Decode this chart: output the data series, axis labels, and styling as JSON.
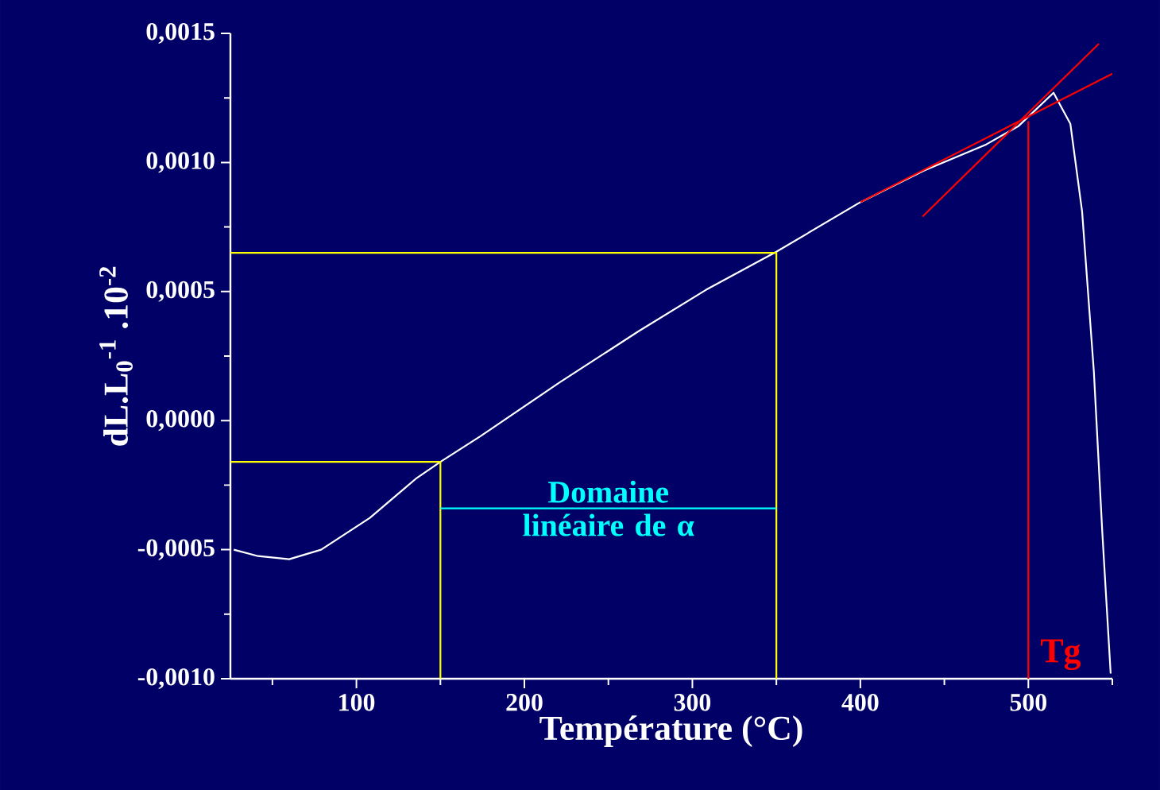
{
  "chart_data": {
    "type": "line",
    "xlabel": "Température (°C)",
    "ylabel": "dL.L$_{0}$$^{-1}$ .10$^{-2}$",
    "xlim": [
      25,
      550
    ],
    "ylim": [
      -0.001,
      0.0015
    ],
    "xticks": [
      100,
      200,
      300,
      400,
      500
    ],
    "yticks": [
      {
        "value": -0.001,
        "label": "-0,0010"
      },
      {
        "value": -0.0005,
        "label": "-0,0005"
      },
      {
        "value": 0,
        "label": "0,0000"
      },
      {
        "value": 0.0005,
        "label": "0,0005"
      },
      {
        "value": 0.001,
        "label": "0,0010"
      },
      {
        "value": 0.0015,
        "label": "0,0015"
      }
    ],
    "series": [
      {
        "color": "#ffffff",
        "x": [
          27,
          41.5,
          60,
          79,
          108,
          136,
          150,
          174,
          221,
          268,
          308,
          350,
          400,
          438,
          475,
          494,
          515,
          525,
          532,
          539,
          544,
          549
        ],
        "values": [
          -0.0005,
          -0.000525,
          -0.000537,
          -0.0005,
          -0.000377,
          -0.000222,
          -0.00016,
          -6e-05,
          0.000148,
          0.000346,
          0.000506,
          0.000654,
          0.000846,
          0.000969,
          0.00107,
          0.00114,
          0.00127,
          0.00115,
          0.00081,
          0.00019,
          -0.00043,
          -0.00098
        ]
      },
      {
        "color": "#ffff00",
        "x": [
          25,
          150,
          150
        ],
        "values": [
          -0.00016,
          -0.00016,
          -0.001
        ]
      },
      {
        "color": "#ffff00",
        "x": [
          25,
          350,
          350
        ],
        "values": [
          0.00065,
          0.00065,
          -0.001
        ]
      },
      {
        "color": "#ff0000",
        "x": [
          400,
          550
        ],
        "values": [
          0.000846,
          0.001344
        ]
      },
      {
        "color": "#ff0000",
        "x": [
          437,
          542
        ],
        "values": [
          0.00079,
          0.00146
        ]
      },
      {
        "name": "Tg",
        "color": "#ff0000",
        "x": [
          500,
          500
        ],
        "values": [
          0.00116,
          -0.001
        ]
      },
      {
        "name": "Domaine linéaire de α",
        "color": "#00ffff",
        "x": [
          150,
          350
        ],
        "values": [
          -0.00034,
          -0.00034
        ]
      }
    ]
  }
}
